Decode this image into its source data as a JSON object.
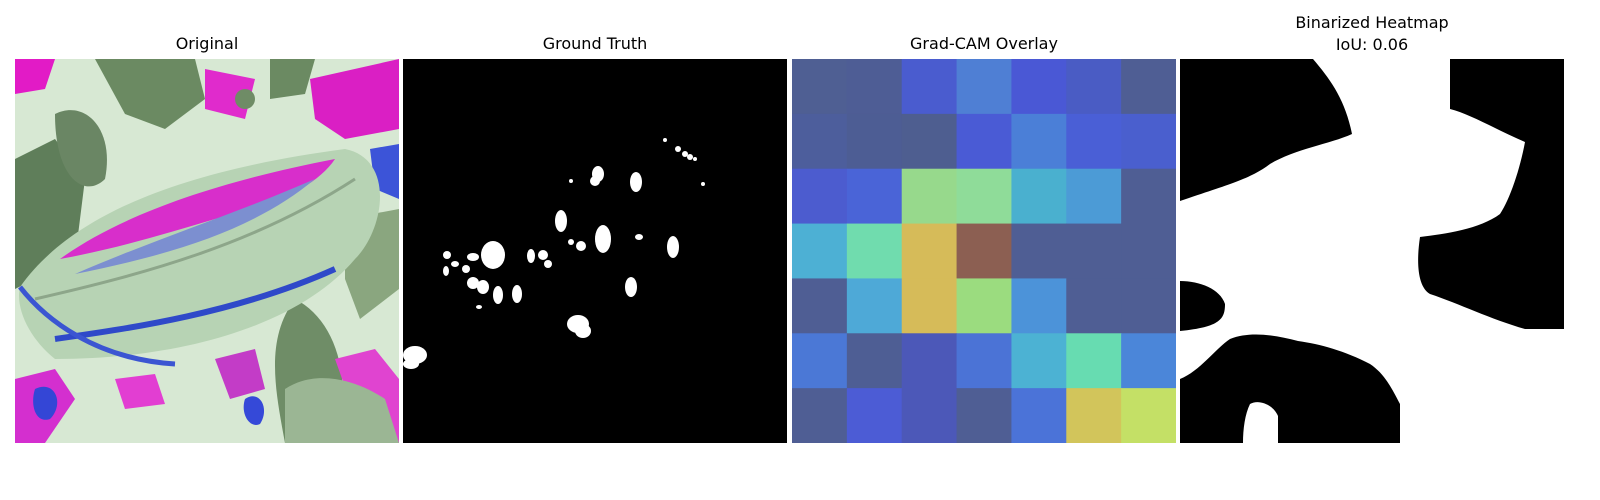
{
  "panels": [
    {
      "title": "Original"
    },
    {
      "title": "Ground Truth"
    },
    {
      "title": "Grad-CAM Overlay"
    },
    {
      "title": "Binarized Heatmap",
      "subtitle": "IoU: 0.06"
    }
  ],
  "gradcam": {
    "grid_size": 7,
    "cells": [
      [
        "#4f5f93",
        "#4e5d95",
        "#4a5ccf",
        "#4f7fd4",
        "#4a58d5",
        "#4a5cc4",
        "#4f5e94"
      ],
      [
        "#4d5e9c",
        "#4d5d94",
        "#4e5e90",
        "#4a5bd5",
        "#4b7fd7",
        "#4a5fd6",
        "#4a5fce"
      ],
      [
        "#4c5ccf",
        "#4a64d7",
        "#97d98c",
        "#8fdc99",
        "#4ab0cf",
        "#4c9bd6",
        "#4f5e94"
      ],
      [
        "#4db0d4",
        "#70dcae",
        "#d6bb59",
        "#8c5f52",
        "#4f5e94",
        "#4f5e94",
        "#4f5e94"
      ],
      [
        "#4f5e94",
        "#4ea9d7",
        "#d6bb59",
        "#9bdc7f",
        "#4c93d9",
        "#4f5e94",
        "#4f5e94"
      ],
      [
        "#4b78d6",
        "#4e5e94",
        "#4c58b8",
        "#4b73d6",
        "#4cb2d3",
        "#67dcb1",
        "#4b86d9"
      ],
      [
        "#4f5e94",
        "#4c5cd5",
        "#4c58b8",
        "#4f5e94",
        "#4b73d8",
        "#d2c55b",
        "#c4e066"
      ]
    ]
  },
  "heatmap_binary": {
    "colors": {
      "foreground": "#ffffff",
      "background": "#000000"
    }
  }
}
